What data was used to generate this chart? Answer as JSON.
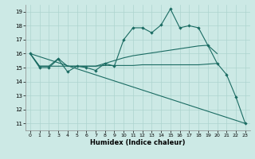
{
  "xlabel": "Humidex (Indice chaleur)",
  "bg_color": "#cce9e5",
  "grid_color": "#add4cf",
  "line_color": "#1a6b62",
  "xlim": [
    -0.5,
    23.5
  ],
  "ylim": [
    10.5,
    19.5
  ],
  "xticks": [
    0,
    1,
    2,
    3,
    4,
    5,
    6,
    7,
    8,
    9,
    10,
    11,
    12,
    13,
    14,
    15,
    16,
    17,
    18,
    19,
    20,
    21,
    22,
    23
  ],
  "yticks": [
    11,
    12,
    13,
    14,
    15,
    16,
    17,
    18,
    19
  ],
  "line1_x": [
    0,
    1,
    2,
    3,
    4,
    5,
    6,
    7,
    8,
    9,
    10,
    11,
    12,
    13,
    14,
    15,
    16,
    17,
    18,
    19,
    20,
    21,
    22,
    23
  ],
  "line1_y": [
    16,
    15,
    15,
    15.6,
    14.7,
    15.1,
    15.0,
    14.8,
    15.3,
    15.1,
    17.0,
    17.85,
    17.85,
    17.5,
    18.05,
    19.2,
    17.85,
    18.0,
    17.85,
    16.6,
    15.3,
    14.5,
    12.9,
    11.0
  ],
  "line2_x": [
    0,
    1,
    2,
    3,
    4,
    5,
    6,
    7,
    8,
    9,
    10,
    11,
    12,
    13,
    14,
    15,
    16,
    17,
    18,
    19,
    20
  ],
  "line2_y": [
    16,
    15.1,
    15.1,
    15.65,
    15.1,
    15.1,
    15.1,
    15.1,
    15.3,
    15.5,
    15.7,
    15.85,
    15.95,
    16.05,
    16.15,
    16.25,
    16.35,
    16.45,
    16.55,
    16.6,
    16.0
  ],
  "line3_x": [
    0,
    1,
    2,
    3,
    4,
    5,
    6,
    7,
    8,
    9,
    10,
    11,
    12,
    13,
    14,
    15,
    16,
    17,
    18,
    19,
    20
  ],
  "line3_y": [
    16,
    15.1,
    15.1,
    15.1,
    15.1,
    15.1,
    15.1,
    15.1,
    15.15,
    15.15,
    15.15,
    15.15,
    15.2,
    15.2,
    15.2,
    15.2,
    15.2,
    15.2,
    15.2,
    15.25,
    15.3
  ],
  "line4_x": [
    0,
    23
  ],
  "line4_y": [
    16.0,
    11.0
  ]
}
